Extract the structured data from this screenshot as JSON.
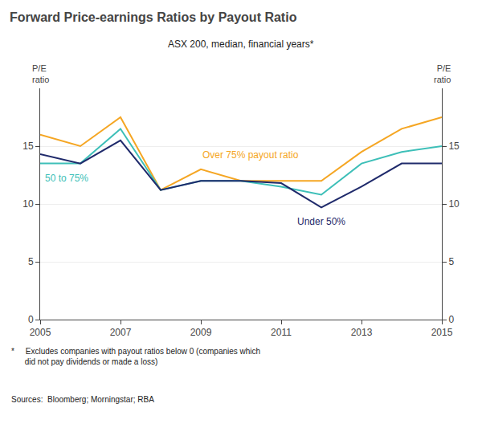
{
  "chart_data": {
    "type": "line",
    "title": "Forward Price-earnings Ratios by Payout Ratio",
    "subtitle": "ASX 200, median, financial years*",
    "ylabel": "P/E\nratio",
    "y2label": "P/E\nratio",
    "footnote": "*     Excludes companies with payout ratios below 0 (companies which\n      did not pay dividends or made a loss)",
    "sources": "Sources:  Bloomberg; Morningstar; RBA",
    "x": [
      2005,
      2006,
      2007,
      2008,
      2009,
      2010,
      2011,
      2012,
      2013,
      2014,
      2015
    ],
    "series": [
      {
        "name": "Over 75% payout ratio",
        "color": "#f5a623",
        "values": [
          16.0,
          15.0,
          17.5,
          11.2,
          13.0,
          12.0,
          12.0,
          12.0,
          14.5,
          16.5,
          17.5
        ]
      },
      {
        "name": "50 to 75%",
        "color": "#3dbfb8",
        "values": [
          13.5,
          13.5,
          16.5,
          11.2,
          12.0,
          12.0,
          11.5,
          10.8,
          13.5,
          14.5,
          15.0
        ]
      },
      {
        "name": "Under 50%",
        "color": "#1f2a6b",
        "values": [
          14.3,
          13.5,
          15.5,
          11.2,
          12.0,
          12.0,
          11.8,
          9.7,
          11.5,
          13.5,
          13.5
        ]
      }
    ],
    "xlim": [
      2005,
      2015
    ],
    "xticks": [
      2005,
      2007,
      2009,
      2011,
      2013,
      2015
    ],
    "ylim": [
      0,
      20
    ],
    "yticks": [
      0,
      5,
      10,
      15
    ],
    "y2lim": [
      0,
      20
    ],
    "y2ticks": [
      0,
      5,
      10,
      15
    ],
    "grid": "y"
  }
}
